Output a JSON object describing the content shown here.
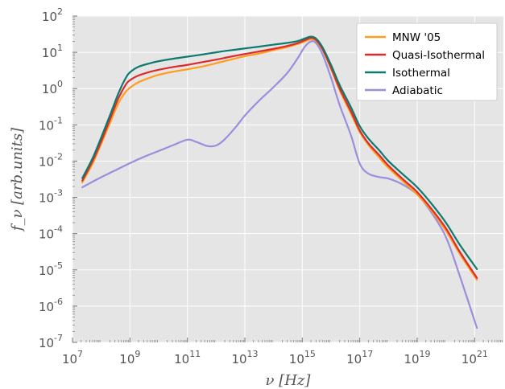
{
  "chart_data": {
    "type": "line",
    "xscale": "log",
    "yscale": "log",
    "xlim": [
      10000000.0,
      1e+22
    ],
    "ylim": [
      1e-07,
      100.0
    ],
    "xlabel": "ν [Hz]",
    "ylabel": "f_ν [arb.units]",
    "grid": true,
    "legend_position": "top-right",
    "x_ticks": [
      {
        "base": "10",
        "exp": "7",
        "value": 10000000.0
      },
      {
        "base": "10",
        "exp": "9",
        "value": 1000000000.0
      },
      {
        "base": "10",
        "exp": "11",
        "value": 100000000000.0
      },
      {
        "base": "10",
        "exp": "13",
        "value": 10000000000000.0
      },
      {
        "base": "10",
        "exp": "15",
        "value": 1000000000000000.0
      },
      {
        "base": "10",
        "exp": "17",
        "value": 1e+17
      },
      {
        "base": "10",
        "exp": "19",
        "value": 1e+19
      },
      {
        "base": "10",
        "exp": "21",
        "value": 1e+21
      }
    ],
    "y_ticks": [
      {
        "base": "10",
        "exp": "-7",
        "value": 1e-07
      },
      {
        "base": "10",
        "exp": "-6",
        "value": 1e-06
      },
      {
        "base": "10",
        "exp": "-5",
        "value": 1e-05
      },
      {
        "base": "10",
        "exp": "-4",
        "value": 0.0001
      },
      {
        "base": "10",
        "exp": "-3",
        "value": 0.001
      },
      {
        "base": "10",
        "exp": "-2",
        "value": 0.01
      },
      {
        "base": "10",
        "exp": "-1",
        "value": 0.1
      },
      {
        "base": "10",
        "exp": "0",
        "value": 1
      },
      {
        "base": "10",
        "exp": "1",
        "value": 10
      },
      {
        "base": "10",
        "exp": "2",
        "value": 100
      }
    ],
    "series": [
      {
        "name": "MNW '05",
        "color": "#ff9d1e",
        "x": [
          22000000.0,
          50000000.0,
          100000000.0,
          200000000.0,
          400000000.0,
          700000000.0,
          1000000000.0,
          2000000000.0,
          5000000000.0,
          10000000000.0,
          30000000000.0,
          100000000000.0,
          300000000000.0,
          1000000000000.0,
          3000000000000.0,
          10000000000000.0,
          30000000000000.0,
          100000000000000.0,
          300000000000000.0,
          700000000000000.0,
          1200000000000000.0,
          2000000000000000.0,
          3000000000000000.0,
          5000000000000000.0,
          1e+16,
          2e+16,
          5e+16,
          1e+17,
          2e+17,
          5e+17,
          1e+18,
          3e+18,
          1e+19,
          3e+19,
          1e+20,
          3e+20,
          1.2e+21
        ],
        "y": [
          0.0026,
          0.0085,
          0.03,
          0.11,
          0.4,
          0.8,
          1.05,
          1.5,
          2.0,
          2.4,
          2.9,
          3.4,
          4.0,
          5.0,
          6.2,
          7.8,
          9.2,
          11.5,
          14.0,
          17.0,
          20.0,
          23.0,
          21.0,
          12.0,
          3.5,
          0.9,
          0.2,
          0.063,
          0.028,
          0.012,
          0.0065,
          0.0029,
          0.0012,
          0.00045,
          0.00012,
          2.8e-05,
          5.3e-06
        ]
      },
      {
        "name": "Quasi-Isothermal",
        "color": "#dd2b2b",
        "x": [
          22000000.0,
          50000000.0,
          100000000.0,
          200000000.0,
          400000000.0,
          700000000.0,
          1000000000.0,
          2000000000.0,
          5000000000.0,
          10000000000.0,
          30000000000.0,
          100000000000.0,
          300000000000.0,
          1000000000000.0,
          3000000000000.0,
          10000000000000.0,
          30000000000000.0,
          100000000000000.0,
          300000000000000.0,
          700000000000000.0,
          1200000000000000.0,
          2000000000000000.0,
          3000000000000000.0,
          5000000000000000.0,
          1e+16,
          2e+16,
          5e+16,
          1e+17,
          2e+17,
          5e+17,
          1e+18,
          3e+18,
          1e+19,
          3e+19,
          1e+20,
          3e+20,
          1.2e+21
        ],
        "y": [
          0.0029,
          0.01,
          0.035,
          0.14,
          0.55,
          1.25,
          1.7,
          2.3,
          2.9,
          3.3,
          3.9,
          4.5,
          5.3,
          6.3,
          7.5,
          9.0,
          10.5,
          12.5,
          15.0,
          18.0,
          21.5,
          25.0,
          22.0,
          12.5,
          3.8,
          1.0,
          0.23,
          0.07,
          0.031,
          0.014,
          0.0075,
          0.0033,
          0.0014,
          0.0005,
          0.00014,
          3.2e-05,
          6e-06
        ]
      },
      {
        "name": "Isothermal",
        "color": "#0e7a6e",
        "x": [
          22000000.0,
          50000000.0,
          100000000.0,
          200000000.0,
          400000000.0,
          700000000.0,
          1000000000.0,
          2000000000.0,
          5000000000.0,
          10000000000.0,
          30000000000.0,
          100000000000.0,
          300000000000.0,
          1000000000000.0,
          3000000000000.0,
          10000000000000.0,
          30000000000000.0,
          100000000000000.0,
          300000000000000.0,
          700000000000000.0,
          1200000000000000.0,
          2000000000000000.0,
          3000000000000000.0,
          5000000000000000.0,
          1e+16,
          2e+16,
          5e+16,
          1e+17,
          2e+17,
          5e+17,
          1e+18,
          3e+18,
          1e+19,
          3e+19,
          1e+20,
          3e+20,
          1.2e+21
        ],
        "y": [
          0.0034,
          0.012,
          0.045,
          0.18,
          0.75,
          1.9,
          2.8,
          4.0,
          5.0,
          5.7,
          6.6,
          7.6,
          8.6,
          10.0,
          11.3,
          12.8,
          14.3,
          16.3,
          18.2,
          20.5,
          24.0,
          27.0,
          24.0,
          14.0,
          4.5,
          1.25,
          0.3,
          0.092,
          0.042,
          0.019,
          0.01,
          0.0045,
          0.0019,
          0.0007,
          0.0002,
          5e-05,
          1.05e-05
        ]
      },
      {
        "name": "Adiabatic",
        "color": "#9a8fdc",
        "x": [
          22000000.0,
          50000000.0,
          100000000.0,
          300000000.0,
          1000000000.0,
          3000000000.0,
          10000000000.0,
          30000000000.0,
          100000000000.0,
          200000000000.0,
          500000000000.0,
          1000000000000.0,
          2000000000000.0,
          5000000000000.0,
          10000000000000.0,
          30000000000000.0,
          100000000000000.0,
          300000000000000.0,
          700000000000000.0,
          1200000000000000.0,
          2000000000000000.0,
          3000000000000000.0,
          5000000000000000.0,
          1e+16,
          2e+16,
          5e+16,
          1e+17,
          2e+17,
          5e+17,
          1e+18,
          3e+18,
          1e+19,
          3e+19,
          1e+20,
          3e+20,
          1.2e+21
        ],
        "y": [
          0.0019,
          0.0027,
          0.0036,
          0.0055,
          0.0088,
          0.013,
          0.019,
          0.027,
          0.039,
          0.034,
          0.026,
          0.027,
          0.04,
          0.09,
          0.18,
          0.45,
          1.1,
          2.7,
          7.0,
          14.0,
          20.0,
          18.0,
          9.0,
          2.0,
          0.35,
          0.05,
          0.0085,
          0.0045,
          0.0036,
          0.0033,
          0.0023,
          0.0012,
          0.0004,
          8e-05,
          7e-06,
          2.5e-07
        ]
      }
    ]
  }
}
